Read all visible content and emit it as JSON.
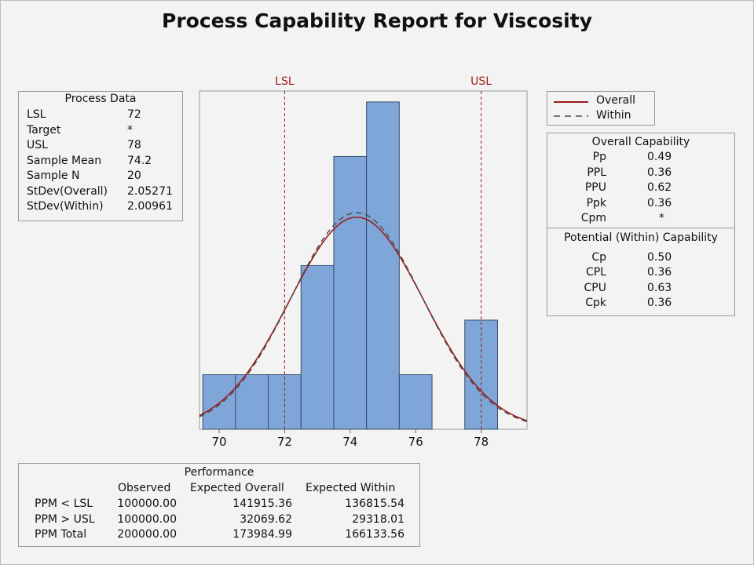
{
  "title": "Process Capability Report for Viscosity",
  "process_data": {
    "heading": "Process Data",
    "rows": [
      {
        "label": "LSL",
        "value": "72"
      },
      {
        "label": "Target",
        "value": "*"
      },
      {
        "label": "USL",
        "value": "78"
      },
      {
        "label": "Sample Mean",
        "value": "74.2"
      },
      {
        "label": "Sample N",
        "value": "20"
      },
      {
        "label": "StDev(Overall)",
        "value": "2.05271"
      },
      {
        "label": "StDev(Within)",
        "value": "2.00961"
      }
    ]
  },
  "legend": [
    {
      "label": "Overall",
      "style": "solid"
    },
    {
      "label": "Within",
      "style": "dashed"
    }
  ],
  "overall_capability": {
    "heading": "Overall Capability",
    "rows": [
      {
        "label": "Pp",
        "value": "0.49"
      },
      {
        "label": "PPL",
        "value": "0.36"
      },
      {
        "label": "PPU",
        "value": "0.62"
      },
      {
        "label": "Ppk",
        "value": "0.36"
      },
      {
        "label": "Cpm",
        "value": "*"
      }
    ]
  },
  "within_capability": {
    "heading": "Potential (Within) Capability",
    "rows": [
      {
        "label": "Cp",
        "value": "0.50"
      },
      {
        "label": "CPL",
        "value": "0.36"
      },
      {
        "label": "CPU",
        "value": "0.63"
      },
      {
        "label": "Cpk",
        "value": "0.36"
      }
    ]
  },
  "performance": {
    "heading": "Performance",
    "columns": [
      "Observed",
      "Expected Overall",
      "Expected Within"
    ],
    "rows": [
      {
        "label": "PPM < LSL",
        "values": [
          "100000.00",
          "141915.36",
          "136815.54"
        ]
      },
      {
        "label": "PPM > USL",
        "values": [
          "100000.00",
          "32069.62",
          "29318.01"
        ]
      },
      {
        "label": "PPM Total",
        "values": [
          "200000.00",
          "173984.99",
          "166133.56"
        ]
      }
    ]
  },
  "chart_data": {
    "type": "bar",
    "subtype": "histogram",
    "bin_width": 1,
    "bins": [
      {
        "start": 69.5,
        "end": 70.5,
        "count": 1
      },
      {
        "start": 70.5,
        "end": 71.5,
        "count": 1
      },
      {
        "start": 71.5,
        "end": 72.5,
        "count": 1
      },
      {
        "start": 72.5,
        "end": 73.5,
        "count": 3
      },
      {
        "start": 73.5,
        "end": 74.5,
        "count": 5
      },
      {
        "start": 74.5,
        "end": 75.5,
        "count": 6
      },
      {
        "start": 75.5,
        "end": 76.5,
        "count": 1
      },
      {
        "start": 76.5,
        "end": 77.5,
        "count": 0
      },
      {
        "start": 77.5,
        "end": 78.5,
        "count": 2
      }
    ],
    "xlim": [
      69.4,
      79.4
    ],
    "x_ticks": [
      70,
      72,
      74,
      76,
      78
    ],
    "x_tick_labels": [
      "70",
      "72",
      "74",
      "76",
      "78"
    ],
    "ymax": 6.2,
    "spec_limits": [
      {
        "label": "LSL",
        "value": 72
      },
      {
        "label": "USL",
        "value": 78
      }
    ],
    "curves": [
      {
        "name": "Overall",
        "mean": 74.2,
        "sd": 2.05271,
        "style": "solid"
      },
      {
        "name": "Within",
        "mean": 74.2,
        "sd": 2.00961,
        "style": "dashed"
      }
    ],
    "colors": {
      "bar_fill": "#7ea6d8",
      "bar_edge": "#3a4a6a",
      "curve": "#9c1c1c",
      "within_curve": "#4d4d4d",
      "spec_line": "#9c1c1c"
    }
  }
}
